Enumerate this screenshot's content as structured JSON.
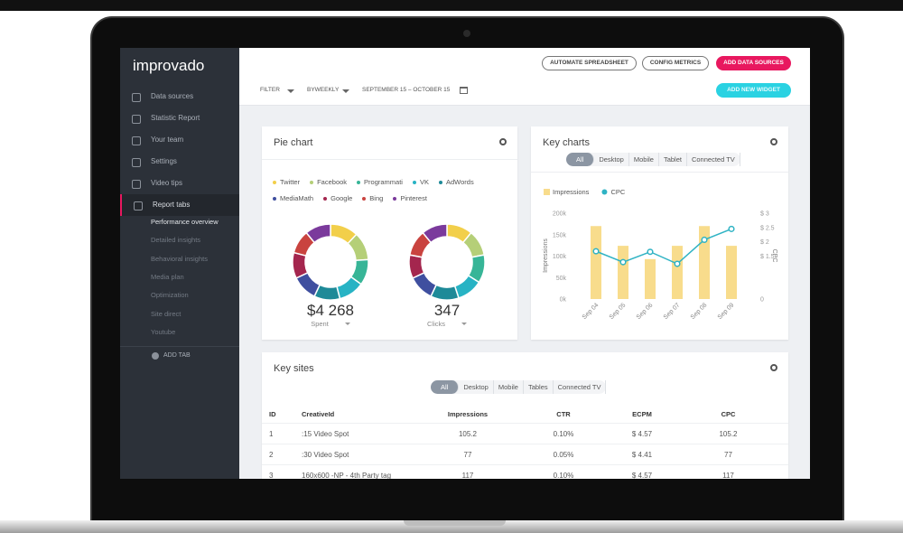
{
  "sidebar": {
    "logo": "improvado",
    "menu": [
      "Data sources",
      "Statistic Report",
      "Your team",
      "Settings",
      "Video tips",
      "Report tabs"
    ],
    "submenu": [
      "Performance overview",
      "Detailed insights",
      "Behavioral insights",
      "Media plan",
      "Optimization",
      "Site direct",
      "Youtube"
    ],
    "add_tab": "ADD TAB"
  },
  "toolbar": {
    "buttons": [
      "AUTOMATE SPREADSHEET",
      "CONFIG METRICS",
      "ADD DATA SOURCES"
    ],
    "filter": "FILTER",
    "period": "BYWEEKLY",
    "date_range": "SEPTEMBER 15 – OCTOBER 15",
    "add_widget": "ADD NEW WIDGET"
  },
  "pie_card": {
    "title": "Pie chart",
    "chart_data": {
      "type": "pie",
      "series": [
        {
          "name": "Twitter",
          "color": "#f2cf4a",
          "values": [
            12,
            11
          ]
        },
        {
          "name": "Facebook",
          "color": "#b5cf78",
          "values": [
            12,
            11
          ]
        },
        {
          "name": "Programmati",
          "color": "#37b597",
          "values": [
            11,
            12
          ]
        },
        {
          "name": "VK",
          "color": "#27b3c4",
          "values": [
            11,
            11
          ]
        },
        {
          "name": "AdWords",
          "color": "#1e8a98",
          "values": [
            11,
            12
          ]
        },
        {
          "name": "MediaMath",
          "color": "#3f4f9f",
          "values": [
            11,
            11
          ]
        },
        {
          "name": "Google",
          "color": "#a4264e",
          "values": [
            11,
            10
          ]
        },
        {
          "name": "Bing",
          "color": "#c9433f",
          "values": [
            10,
            11
          ]
        },
        {
          "name": "Pinterest",
          "color": "#7b3a9c",
          "values": [
            11,
            11
          ]
        }
      ],
      "totals": [
        "$4 268",
        "347"
      ],
      "captions": [
        "Spent",
        "Clicks"
      ]
    }
  },
  "key_charts": {
    "title": "Key charts",
    "tabs": [
      "All",
      "Desktop",
      "Mobile",
      "Tablet",
      "Connected TV"
    ],
    "chart_data": {
      "type": "bar",
      "y_label": "Impressions",
      "y2_label": "CPC",
      "categories": [
        "Sep 04",
        "Sep 05",
        "Sep 06",
        "Sep 07",
        "Sep 08",
        "Sep 09"
      ],
      "series": [
        {
          "name": "Impressions",
          "color": "#f8dc8c",
          "values": [
            170000,
            124000,
            93000,
            124000,
            170000,
            124000
          ]
        },
        {
          "name": "CPC",
          "color": "#2fb3c4",
          "type": "line",
          "axis": "y2",
          "values": [
            1.67,
            1.29,
            1.65,
            1.23,
            2.07,
            2.45
          ]
        }
      ],
      "ylim": [
        0,
        200000
      ],
      "yticks": [
        {
          "value": 0,
          "label": "0k"
        },
        {
          "value": 50000,
          "label": "50k"
        },
        {
          "value": 100000,
          "label": "100k"
        },
        {
          "value": 150000,
          "label": "150k"
        },
        {
          "value": 200000,
          "label": "200k"
        }
      ],
      "y2lim": [
        0,
        3
      ],
      "y2ticks": [
        0,
        {
          "value": 1.5,
          "label": "$ 1.5"
        },
        {
          "value": 2,
          "label": "$ 2"
        },
        {
          "value": 2.5,
          "label": "$ 2.5"
        },
        {
          "value": 3,
          "label": "$ 3"
        }
      ]
    }
  },
  "key_sites": {
    "title": "Key sites",
    "tabs": [
      "All",
      "Desktop",
      "Mobile",
      "Tables",
      "Connected TV"
    ],
    "columns": [
      "ID",
      "CreativeId",
      "Impressions",
      "CTR",
      "ECPM",
      "CPC"
    ],
    "rows": [
      [
        "1",
        ":15 Video Spot",
        "105.2",
        "0.10%",
        "$ 4.57",
        "105.2"
      ],
      [
        "2",
        ":30 Video Spot",
        "77",
        "0.05%",
        "$ 4.41",
        "77"
      ],
      [
        "3",
        "160x600 -NP - 4th Party tag",
        "117",
        "0.10%",
        "$ 4.57",
        "117"
      ]
    ]
  }
}
